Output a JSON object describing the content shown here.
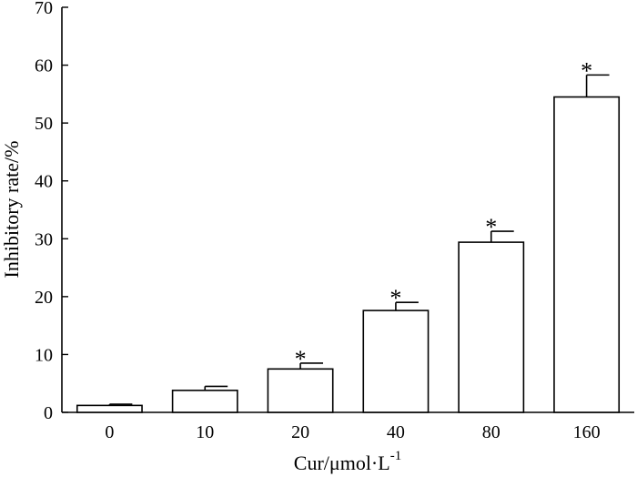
{
  "chart_data": {
    "type": "bar",
    "categories": [
      "0",
      "10",
      "20",
      "40",
      "80",
      "160"
    ],
    "values": [
      1.2,
      3.8,
      7.5,
      17.6,
      29.4,
      54.5
    ],
    "error_upper": [
      0.2,
      0.7,
      1.0,
      1.4,
      1.9,
      3.8
    ],
    "significance": [
      "",
      "",
      "*",
      "*",
      "*",
      "*"
    ],
    "title": "",
    "xlabel": "Cur/μmol·L",
    "xlabel_superscript": "-1",
    "ylabel": "Inhibitory rate/%",
    "ylim": [
      0,
      70
    ],
    "yticks": [
      "0",
      "10",
      "20",
      "30",
      "40",
      "50",
      "60",
      "70"
    ],
    "grid": false,
    "legend": "none"
  }
}
